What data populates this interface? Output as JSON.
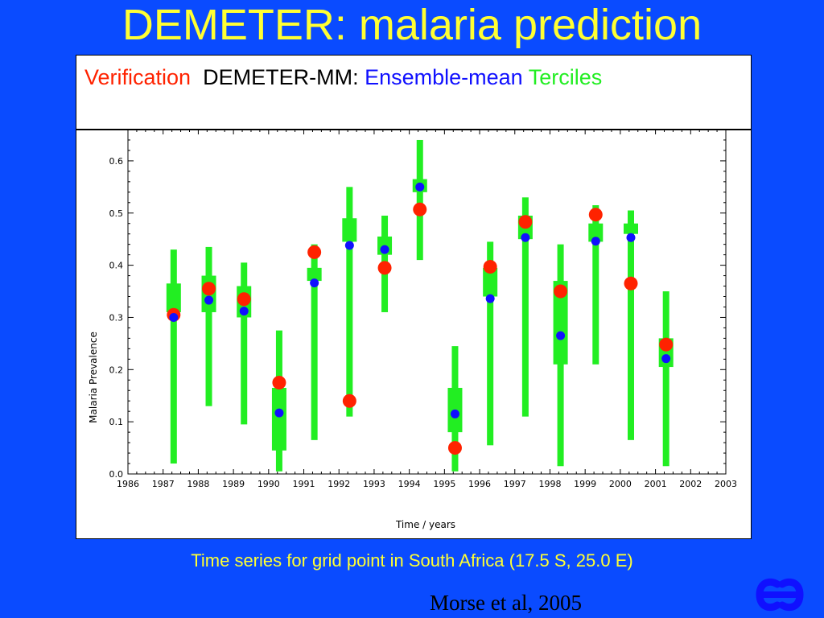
{
  "title": "DEMETER: malaria prediction",
  "legend": {
    "verification": "Verification",
    "model": "DEMETER-MM:",
    "ensemble_mean": "Ensemble-mean",
    "terciles": "Terciles"
  },
  "caption": "Time series for grid point in South Africa (17.5 S, 25.0 E)",
  "citation": "Morse et al, 2005",
  "colors": {
    "background": "#0a4bff",
    "title": "#ffff33",
    "verification": "#ff2200",
    "ensemble_mean": "#1010ff",
    "terciles": "#22ee22"
  },
  "icons": {
    "logo": "ecmwf-logo"
  },
  "chart_data": {
    "type": "scatter",
    "xlabel": "Time / years",
    "ylabel": "Malaria Prevalence",
    "xlim": [
      1986,
      2003
    ],
    "ylim": [
      0.0,
      0.66
    ],
    "xticks": [
      "1986",
      "1987",
      "1988",
      "1989",
      "1990",
      "1991",
      "1992",
      "1993",
      "1994",
      "1995",
      "1996",
      "1997",
      "1998",
      "1999",
      "2000",
      "2001",
      "2002",
      "2003"
    ],
    "yticks": [
      "0.0",
      "0.1",
      "0.2",
      "0.3",
      "0.4",
      "0.5",
      "0.6"
    ],
    "grid": false,
    "years": [
      1987,
      1988,
      1989,
      1990,
      1991,
      1992,
      1993,
      1994,
      1995,
      1996,
      1997,
      1998,
      1999,
      2000,
      2001
    ],
    "terciles": [
      {
        "min": 0.02,
        "q_low": 0.31,
        "q_high": 0.365,
        "max": 0.43
      },
      {
        "min": 0.13,
        "q_low": 0.31,
        "q_high": 0.38,
        "max": 0.435
      },
      {
        "min": 0.095,
        "q_low": 0.3,
        "q_high": 0.36,
        "max": 0.405
      },
      {
        "min": 0.005,
        "q_low": 0.045,
        "q_high": 0.165,
        "max": 0.275
      },
      {
        "min": 0.065,
        "q_low": 0.37,
        "q_high": 0.395,
        "max": 0.44
      },
      {
        "min": 0.11,
        "q_low": 0.445,
        "q_high": 0.49,
        "max": 0.55
      },
      {
        "min": 0.31,
        "q_low": 0.42,
        "q_high": 0.455,
        "max": 0.495
      },
      {
        "min": 0.41,
        "q_low": 0.54,
        "q_high": 0.565,
        "max": 0.64
      },
      {
        "min": 0.005,
        "q_low": 0.08,
        "q_high": 0.165,
        "max": 0.245
      },
      {
        "min": 0.055,
        "q_low": 0.34,
        "q_high": 0.395,
        "max": 0.445
      },
      {
        "min": 0.11,
        "q_low": 0.45,
        "q_high": 0.495,
        "max": 0.53
      },
      {
        "min": 0.015,
        "q_low": 0.21,
        "q_high": 0.37,
        "max": 0.44
      },
      {
        "min": 0.21,
        "q_low": 0.445,
        "q_high": 0.48,
        "max": 0.515
      },
      {
        "min": 0.065,
        "q_low": 0.46,
        "q_high": 0.48,
        "max": 0.505
      },
      {
        "min": 0.015,
        "q_low": 0.205,
        "q_high": 0.26,
        "max": 0.35
      }
    ],
    "series": [
      {
        "name": "Verification",
        "values": [
          0.305,
          0.355,
          0.335,
          0.175,
          0.425,
          0.14,
          0.395,
          0.507,
          0.05,
          0.397,
          0.483,
          0.35,
          0.497,
          0.365,
          0.248
        ]
      },
      {
        "name": "Ensemble-mean",
        "values": [
          0.3,
          0.333,
          0.312,
          0.117,
          0.366,
          0.438,
          0.43,
          0.55,
          0.115,
          0.336,
          0.453,
          0.265,
          0.446,
          0.453,
          0.221
        ]
      }
    ]
  }
}
